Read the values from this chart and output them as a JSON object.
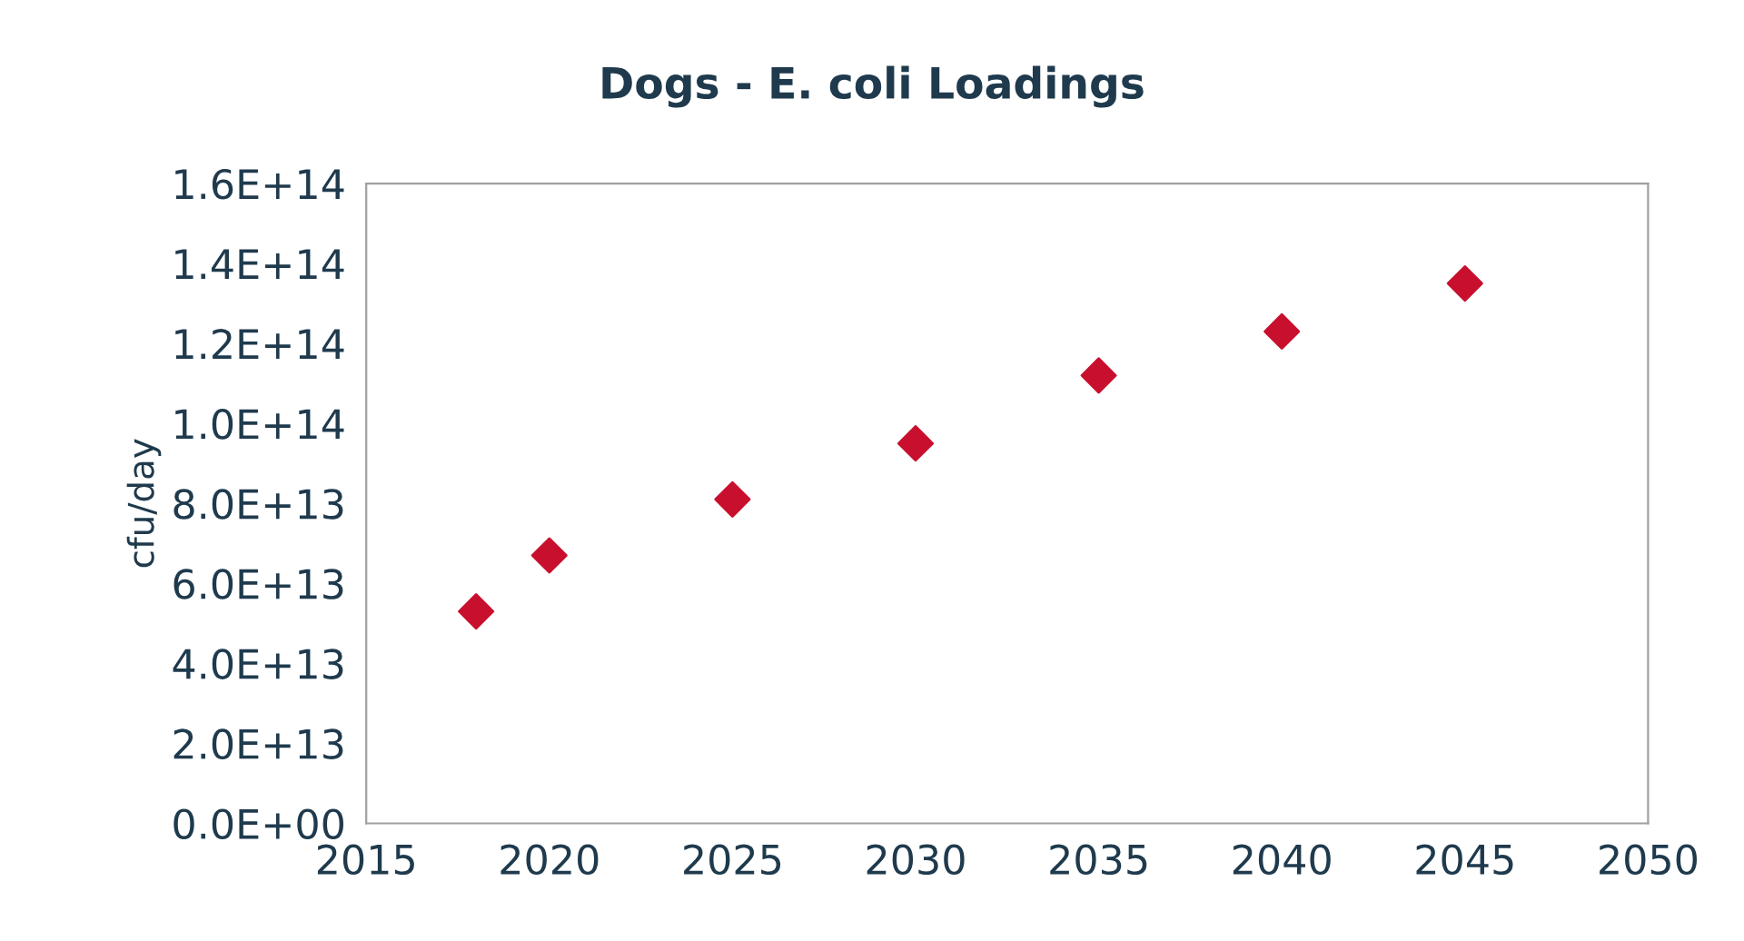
{
  "chart_data": {
    "type": "scatter",
    "title": "Dogs - E. coli Loadings",
    "ylabel": "cfu/day",
    "x": [
      2018,
      2020,
      2025,
      2030,
      2035,
      2040,
      2045
    ],
    "values": [
      53000000000000.0,
      67000000000000.0,
      81000000000000.0,
      95000000000000.0,
      112000000000000.0,
      123000000000000.0,
      135000000000000.0
    ],
    "color": "#c8102e",
    "marker": "diamond",
    "grid": false,
    "legend": false,
    "xlim": [
      2015,
      2050
    ],
    "xticks": [
      2015,
      2020,
      2025,
      2030,
      2035,
      2040,
      2045,
      2050
    ],
    "ylim": [
      0,
      160000000000000.0
    ],
    "yticks": [
      {
        "value": 0,
        "label": "0.0E+00"
      },
      {
        "value": 20000000000000.0,
        "label": "2.0E+13"
      },
      {
        "value": 40000000000000.0,
        "label": "4.0E+13"
      },
      {
        "value": 60000000000000.0,
        "label": "6.0E+13"
      },
      {
        "value": 80000000000000.0,
        "label": "8.0E+13"
      },
      {
        "value": 100000000000000.0,
        "label": "1.0E+14"
      },
      {
        "value": 120000000000000.0,
        "label": "1.2E+14"
      },
      {
        "value": 140000000000000.0,
        "label": "1.4E+14"
      },
      {
        "value": 160000000000000.0,
        "label": "1.6E+14"
      }
    ]
  }
}
